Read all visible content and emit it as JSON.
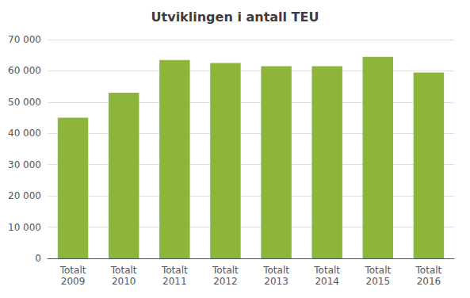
{
  "chart_data": {
    "type": "bar",
    "title": "Utviklingen i antall TEU",
    "categories": [
      "Totalt\n2009",
      "Totalt\n2010",
      "Totalt\n2011",
      "Totalt\n2012",
      "Totalt\n2013",
      "Totalt\n2014",
      "Totalt\n2015",
      "Totalt\n2016"
    ],
    "values": [
      45000,
      53000,
      63500,
      62500,
      61500,
      61500,
      64500,
      59500
    ],
    "color": "#8DB53C",
    "ylim": [
      0,
      70000
    ],
    "yticks": [
      0,
      {
        "value": 10000,
        "label": "10 000"
      },
      {
        "value": 20000,
        "label": "20 000"
      },
      {
        "value": 30000,
        "label": "30 000"
      },
      {
        "value": 40000,
        "label": "40 000"
      },
      {
        "value": 50000,
        "label": "50 000"
      },
      {
        "value": 60000,
        "label": "60 000"
      },
      {
        "value": 70000,
        "label": "70 000"
      }
    ],
    "grid": true
  }
}
